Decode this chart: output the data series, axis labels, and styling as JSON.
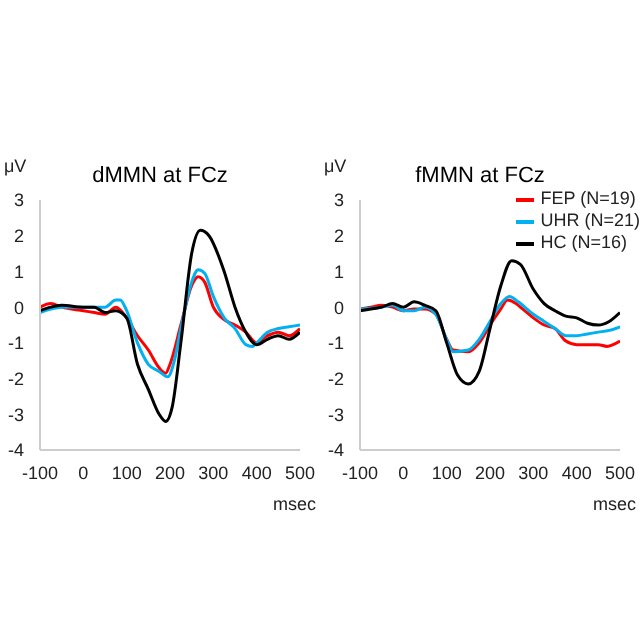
{
  "chart_data": [
    {
      "type": "line",
      "title": "dMMN at FCz",
      "xlabel": "msec",
      "ylabel": "μV",
      "xlim": [
        -100,
        500
      ],
      "xticks": [
        -100,
        0,
        100,
        200,
        300,
        400,
        500
      ],
      "ylim": [
        -4,
        3
      ],
      "yticks": [
        -4,
        -3,
        -2,
        -1,
        0,
        1,
        2,
        3
      ],
      "grid": false,
      "legend": false,
      "series": [
        {
          "color": "#ff0000",
          "x": [
            -100,
            -75,
            -50,
            0,
            25,
            50,
            75,
            100,
            125,
            150,
            175,
            190,
            200,
            225,
            250,
            265,
            280,
            300,
            325,
            350,
            375,
            400,
            425,
            450,
            475,
            500
          ],
          "values": [
            0,
            0.1,
            0,
            -0.1,
            -0.15,
            -0.2,
            0,
            -0.3,
            -0.8,
            -1.2,
            -1.7,
            -1.85,
            -1.6,
            -0.5,
            0.6,
            0.85,
            0.7,
            0,
            -0.35,
            -0.5,
            -0.7,
            -1.0,
            -0.8,
            -0.7,
            -0.8,
            -0.6
          ]
        },
        {
          "color": "#00b0f0",
          "x": [
            -100,
            -75,
            -50,
            0,
            25,
            50,
            75,
            85,
            100,
            125,
            150,
            175,
            195,
            210,
            225,
            250,
            265,
            280,
            300,
            325,
            350,
            375,
            390,
            400,
            425,
            450,
            475,
            500
          ],
          "values": [
            -0.15,
            -0.05,
            0,
            0,
            0,
            0,
            0.2,
            0.2,
            -0.1,
            -1.0,
            -1.6,
            -1.8,
            -1.95,
            -1.5,
            -0.6,
            0.7,
            1.05,
            0.95,
            0.3,
            -0.3,
            -0.6,
            -1.05,
            -1.1,
            -1.0,
            -0.7,
            -0.6,
            -0.55,
            -0.5
          ]
        },
        {
          "color": "#000000",
          "x": [
            -100,
            -75,
            -50,
            0,
            25,
            50,
            75,
            100,
            125,
            150,
            175,
            190,
            205,
            225,
            250,
            270,
            290,
            325,
            350,
            375,
            400,
            425,
            450,
            475,
            500
          ],
          "values": [
            -0.1,
            0,
            0.05,
            0,
            0,
            -0.15,
            -0.1,
            -0.3,
            -1.6,
            -2.3,
            -3.0,
            -3.2,
            -2.8,
            -1.0,
            1.5,
            2.15,
            2.0,
            1.0,
            0,
            -0.7,
            -1.05,
            -0.9,
            -0.8,
            -0.9,
            -0.7
          ]
        }
      ]
    },
    {
      "type": "line",
      "title": "fMMN at FCz",
      "xlabel": "msec",
      "ylabel": "μV",
      "xlim": [
        -100,
        500
      ],
      "xticks": [
        -100,
        0,
        100,
        200,
        300,
        400,
        500
      ],
      "ylim": [
        -4,
        3
      ],
      "yticks": [
        -4,
        -3,
        -2,
        -1,
        0,
        1,
        2,
        3
      ],
      "grid": false,
      "legend": "top right",
      "series": [
        {
          "name": "FEP (N=19)",
          "color": "#ff0000",
          "x": [
            -100,
            -75,
            -50,
            -25,
            0,
            25,
            50,
            75,
            100,
            115,
            150,
            175,
            200,
            225,
            240,
            260,
            275,
            300,
            325,
            350,
            375,
            400,
            425,
            450,
            470,
            500
          ],
          "values": [
            -0.05,
            0,
            0.05,
            0,
            -0.1,
            -0.05,
            -0.05,
            -0.2,
            -0.9,
            -1.2,
            -1.25,
            -1.0,
            -0.5,
            -0.05,
            0.2,
            0.1,
            -0.05,
            -0.3,
            -0.5,
            -0.6,
            -0.95,
            -1.05,
            -1.05,
            -1.05,
            -1.1,
            -0.95
          ]
        },
        {
          "name": "UHR (N=21)",
          "color": "#00b0f0",
          "x": [
            -100,
            -50,
            -25,
            0,
            25,
            50,
            75,
            100,
            115,
            150,
            175,
            200,
            225,
            245,
            265,
            300,
            325,
            350,
            375,
            400,
            425,
            450,
            475,
            500
          ],
          "values": [
            -0.05,
            0,
            0.05,
            -0.1,
            -0.1,
            0,
            -0.2,
            -0.9,
            -1.25,
            -1.2,
            -0.9,
            -0.4,
            0.1,
            0.3,
            0.15,
            -0.2,
            -0.4,
            -0.6,
            -0.8,
            -0.8,
            -0.75,
            -0.7,
            -0.65,
            -0.55
          ]
        },
        {
          "name": "HC (N=16)",
          "color": "#000000",
          "x": [
            -100,
            -75,
            -50,
            -25,
            0,
            25,
            50,
            75,
            100,
            125,
            150,
            175,
            200,
            225,
            250,
            270,
            300,
            325,
            350,
            375,
            400,
            425,
            450,
            475,
            500
          ],
          "values": [
            -0.1,
            -0.05,
            0,
            0.1,
            0,
            0.15,
            0.05,
            -0.1,
            -1.0,
            -1.9,
            -2.15,
            -1.8,
            -0.6,
            0.6,
            1.3,
            1.2,
            0.5,
            0.1,
            -0.1,
            -0.25,
            -0.3,
            -0.45,
            -0.5,
            -0.4,
            -0.15
          ]
        }
      ]
    }
  ]
}
